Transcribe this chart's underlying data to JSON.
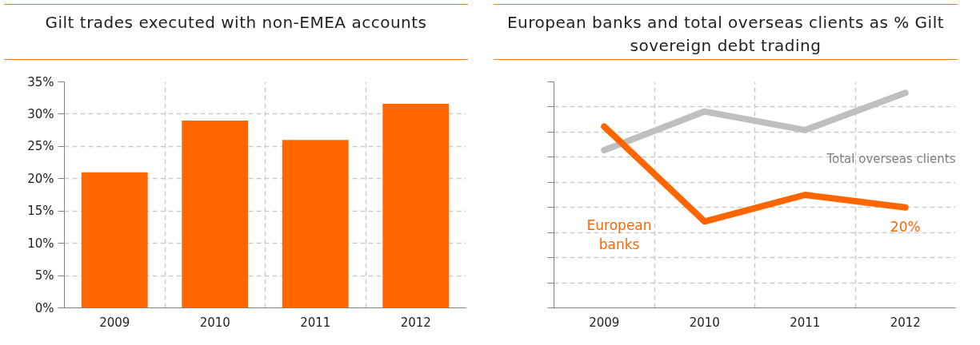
{
  "chart_data": [
    {
      "type": "bar",
      "title": "Gilt trades executed with non-EMEA accounts",
      "categories": [
        "2009",
        "2010",
        "2011",
        "2012"
      ],
      "values": [
        21.0,
        29.0,
        26.0,
        31.6
      ],
      "color": "#ff6600",
      "ylim": [
        0,
        35
      ],
      "yticks": [
        {
          "value": 0,
          "label": "0%"
        },
        {
          "value": 5,
          "label": "5%"
        },
        {
          "value": 10,
          "label": "10%"
        },
        {
          "value": 15,
          "label": "15%"
        },
        {
          "value": 20,
          "label": "20%"
        },
        {
          "value": 25,
          "label": "25%"
        },
        {
          "value": 30,
          "label": "30%"
        },
        {
          "value": 35,
          "label": "35%"
        }
      ],
      "grid": true
    },
    {
      "type": "line",
      "title": "European banks and total overseas clients as % Gilt sovereign debt trading",
      "categories": [
        "2009",
        "2010",
        "2011",
        "2012"
      ],
      "ylim": [
        0,
        45
      ],
      "yticks": [
        {
          "value": 0,
          "label": null
        },
        {
          "value": 5,
          "label": null
        },
        {
          "value": 10,
          "label": null
        },
        {
          "value": 15,
          "label": null
        },
        {
          "value": 20,
          "label": null
        },
        {
          "value": 25,
          "label": null
        },
        {
          "value": 30,
          "label": null
        },
        {
          "value": 35,
          "label": null
        },
        {
          "value": 40,
          "label": null
        },
        {
          "value": 45,
          "label": null
        }
      ],
      "tick_labels": "x",
      "grid": true,
      "series": [
        {
          "name": "Total overseas clients",
          "color": "#bfbfbf",
          "values": [
            31.4,
            39.1,
            35.4,
            42.8
          ]
        },
        {
          "name": "European banks",
          "color": "#ff6600",
          "values": [
            36.1,
            17.2,
            22.5,
            20
          ],
          "value_labels": [
            null,
            null,
            null,
            "20%"
          ]
        }
      ]
    }
  ]
}
